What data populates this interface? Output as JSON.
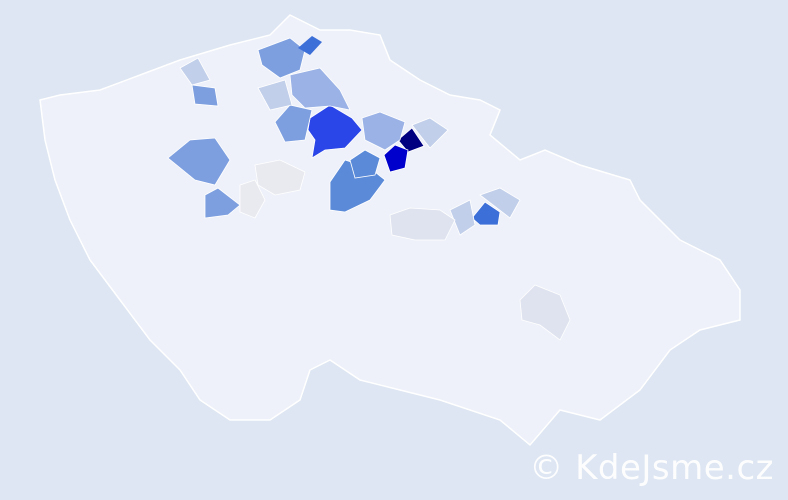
{
  "watermark": "© KdeJsme.cz",
  "colors": {
    "background": "#dde6f2",
    "base_region": "#eef1f9",
    "border": "#ffffff",
    "highlighted_regions": [
      "#000080",
      "#0000cc",
      "#2a45e8",
      "#3d6fd8",
      "#5b8ad8",
      "#7d9fe0",
      "#9ab2e6",
      "#c2cfea",
      "#dfe3ef",
      "#e8eaf0"
    ]
  }
}
